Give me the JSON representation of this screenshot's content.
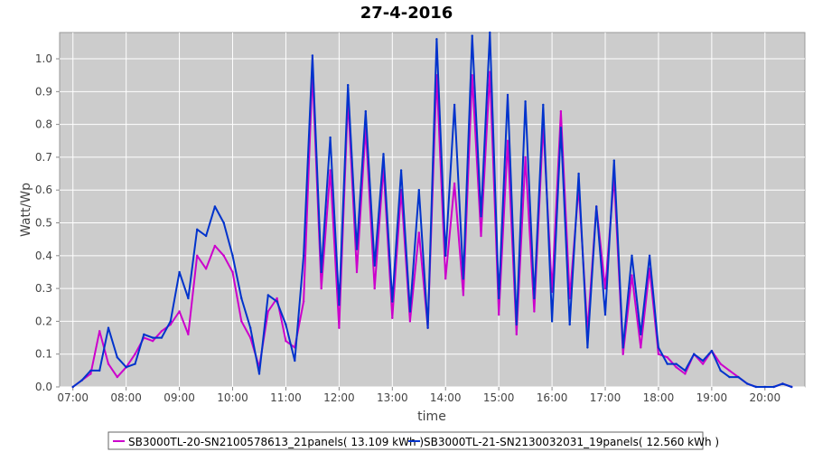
{
  "chart_data": {
    "type": "line",
    "title": "27-4-2016",
    "xlabel": "time",
    "ylabel": "Watt/Wp",
    "xlim": [
      "06:45",
      "20:45"
    ],
    "ylim": [
      0,
      1.08
    ],
    "x_ticks": [
      "07:00",
      "08:00",
      "09:00",
      "10:00",
      "11:00",
      "12:00",
      "13:00",
      "14:00",
      "15:00",
      "16:00",
      "17:00",
      "18:00",
      "19:00",
      "20:00"
    ],
    "y_ticks": [
      "0.0",
      "0.1",
      "0.2",
      "0.3",
      "0.4",
      "0.5",
      "0.6",
      "0.7",
      "0.8",
      "0.9",
      "1.0"
    ],
    "grid": true,
    "legend_position": "bottom",
    "x": [
      "07:00",
      "07:10",
      "07:20",
      "07:30",
      "07:40",
      "07:50",
      "08:00",
      "08:10",
      "08:20",
      "08:30",
      "08:40",
      "08:50",
      "09:00",
      "09:10",
      "09:20",
      "09:30",
      "09:40",
      "09:50",
      "10:00",
      "10:10",
      "10:20",
      "10:30",
      "10:40",
      "10:50",
      "11:00",
      "11:10",
      "11:20",
      "11:30",
      "11:40",
      "11:50",
      "12:00",
      "12:10",
      "12:20",
      "12:30",
      "12:40",
      "12:50",
      "13:00",
      "13:10",
      "13:20",
      "13:30",
      "13:40",
      "13:50",
      "14:00",
      "14:10",
      "14:20",
      "14:30",
      "14:40",
      "14:50",
      "15:00",
      "15:10",
      "15:20",
      "15:30",
      "15:40",
      "15:50",
      "16:00",
      "16:10",
      "16:20",
      "16:30",
      "16:40",
      "16:50",
      "17:00",
      "17:10",
      "17:20",
      "17:30",
      "17:40",
      "17:50",
      "18:00",
      "18:10",
      "18:20",
      "18:30",
      "18:40",
      "18:50",
      "19:00",
      "19:10",
      "19:20",
      "19:30",
      "19:40",
      "19:50",
      "20:00",
      "20:10",
      "20:20",
      "20:30"
    ],
    "series": [
      {
        "name": "SB3000TL-20-SN2100578613_21panels( 13.109 kWh )",
        "color": "#cc00cc",
        "values": [
          0.0,
          0.02,
          0.04,
          0.17,
          0.07,
          0.03,
          0.06,
          0.1,
          0.15,
          0.14,
          0.17,
          0.19,
          0.23,
          0.16,
          0.4,
          0.36,
          0.43,
          0.4,
          0.35,
          0.2,
          0.15,
          0.06,
          0.23,
          0.27,
          0.14,
          0.12,
          0.26,
          0.96,
          0.3,
          0.66,
          0.18,
          0.88,
          0.35,
          0.79,
          0.3,
          0.67,
          0.21,
          0.6,
          0.2,
          0.47,
          0.18,
          0.95,
          0.33,
          0.62,
          0.28,
          0.95,
          0.46,
          0.96,
          0.22,
          0.75,
          0.16,
          0.7,
          0.23,
          0.8,
          0.29,
          0.84,
          0.27,
          0.61,
          0.17,
          0.55,
          0.3,
          0.64,
          0.1,
          0.34,
          0.12,
          0.36,
          0.1,
          0.09,
          0.06,
          0.04,
          0.1,
          0.07,
          0.11,
          0.07,
          0.05,
          0.03,
          0.01,
          0.0,
          0.0,
          0.0,
          0.01,
          0.0
        ]
      },
      {
        "name": "SB3000TL-21-SN2130032031_19panels( 12.560 kWh )",
        "color": "#0033cc",
        "values": [
          0.0,
          0.02,
          0.05,
          0.05,
          0.18,
          0.09,
          0.06,
          0.07,
          0.16,
          0.15,
          0.15,
          0.2,
          0.35,
          0.27,
          0.48,
          0.46,
          0.55,
          0.5,
          0.4,
          0.27,
          0.18,
          0.04,
          0.28,
          0.26,
          0.19,
          0.08,
          0.4,
          1.01,
          0.35,
          0.76,
          0.25,
          0.92,
          0.42,
          0.84,
          0.37,
          0.71,
          0.26,
          0.66,
          0.23,
          0.6,
          0.18,
          1.06,
          0.4,
          0.86,
          0.33,
          1.07,
          0.52,
          1.08,
          0.27,
          0.89,
          0.19,
          0.87,
          0.27,
          0.86,
          0.2,
          0.79,
          0.19,
          0.65,
          0.12,
          0.55,
          0.22,
          0.69,
          0.12,
          0.4,
          0.16,
          0.4,
          0.12,
          0.07,
          0.07,
          0.05,
          0.1,
          0.08,
          0.11,
          0.05,
          0.03,
          0.03,
          0.01,
          0.0,
          0.0,
          0.0,
          0.01,
          0.0
        ]
      }
    ]
  }
}
